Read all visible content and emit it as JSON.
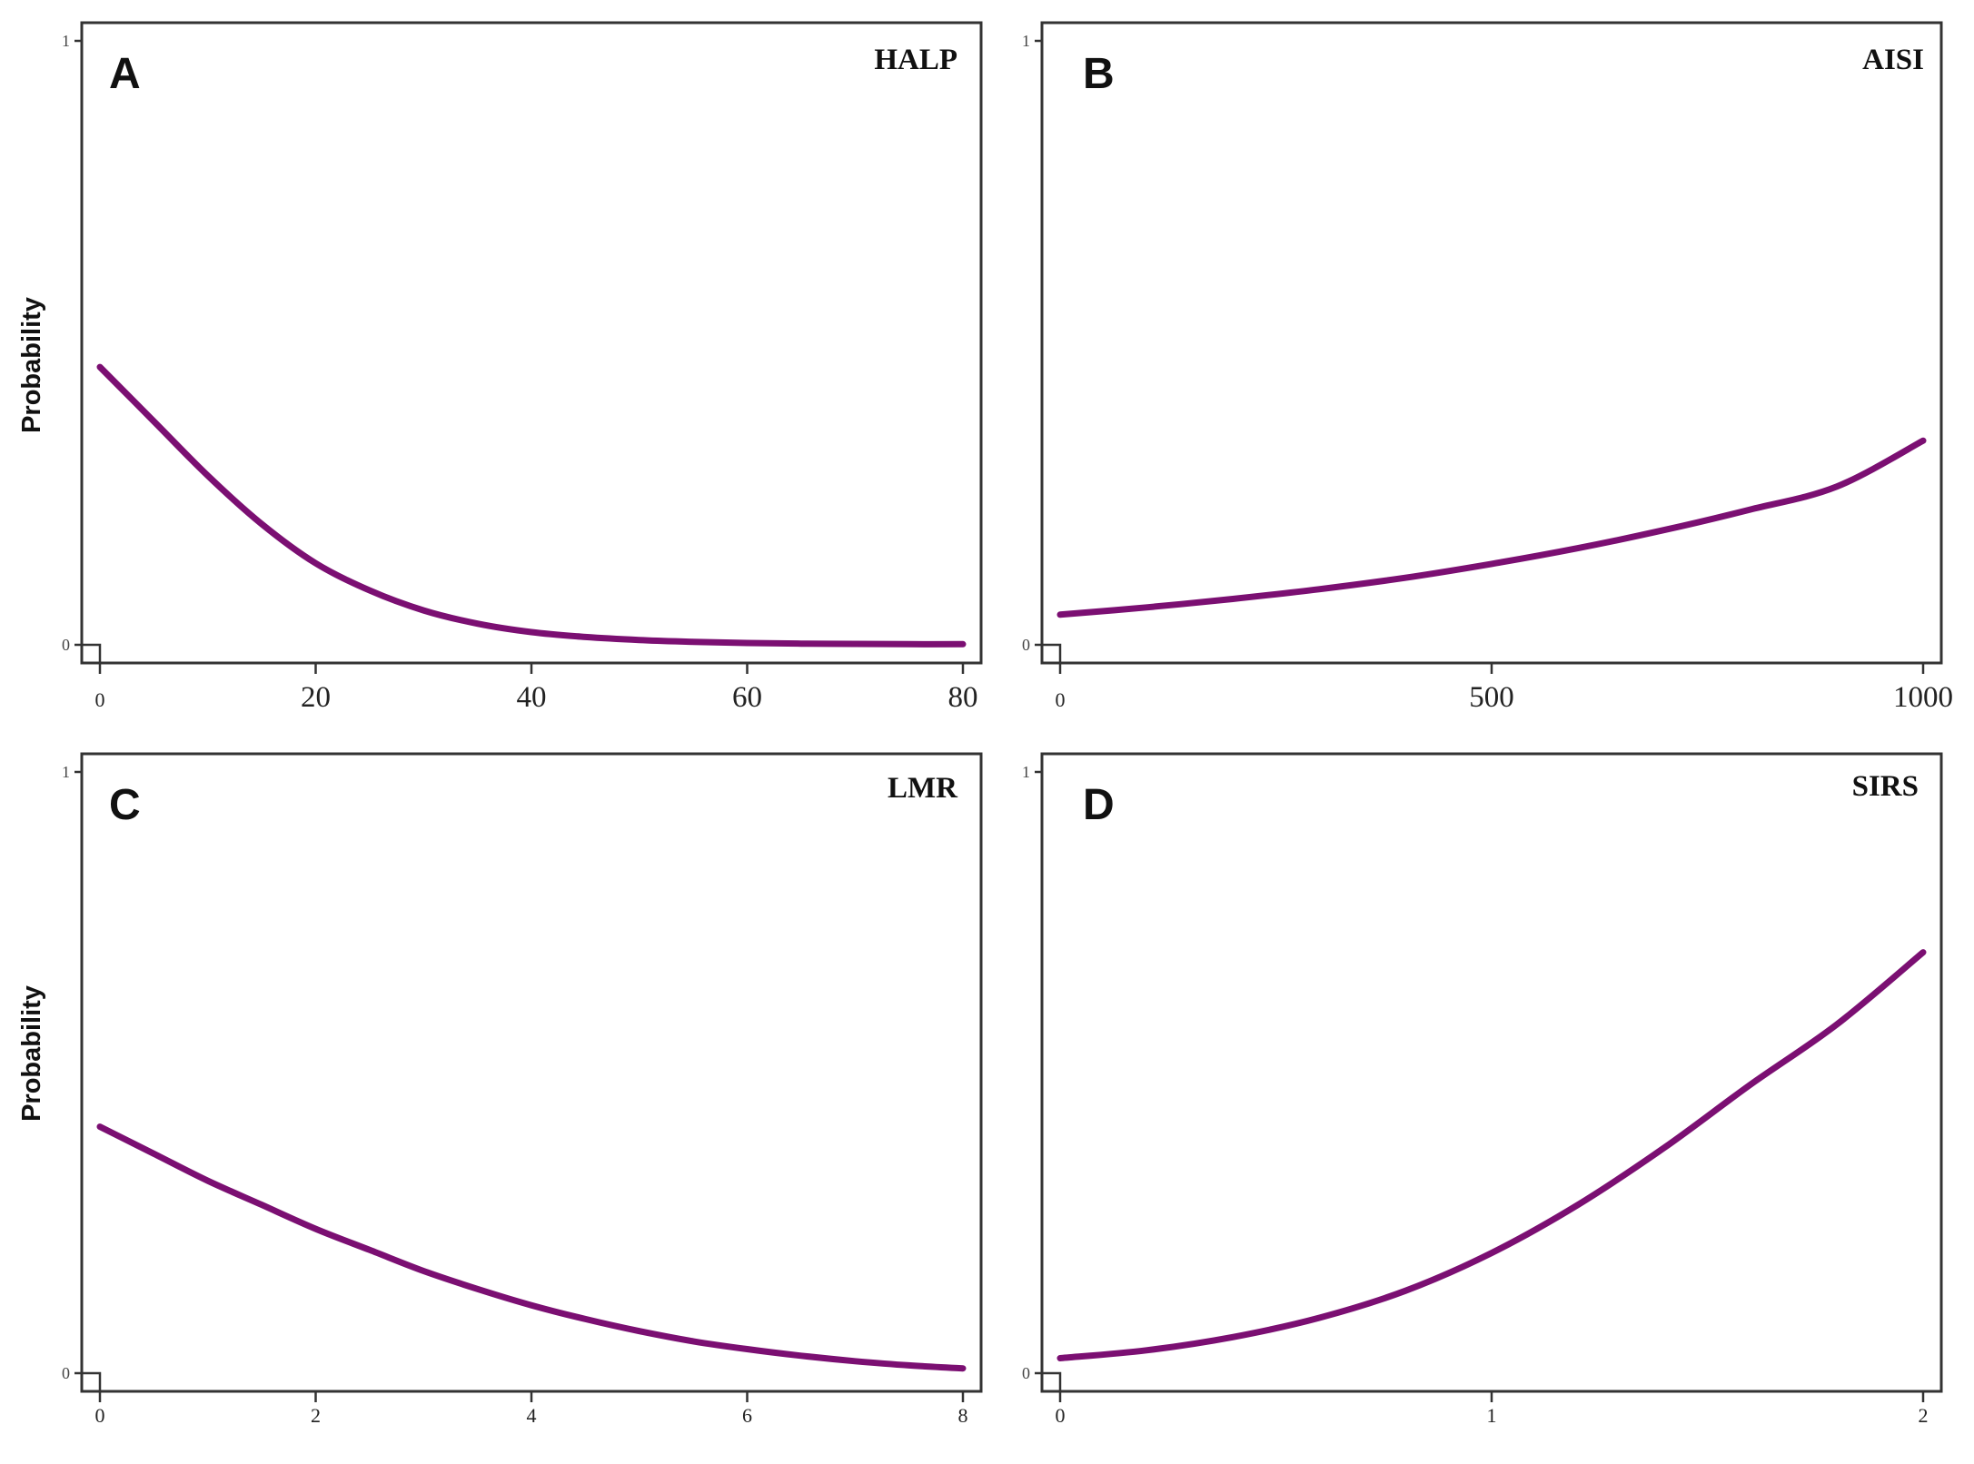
{
  "chart_data": [
    {
      "panel": "A",
      "title": "HALP",
      "type": "line",
      "ylabel": "Probability",
      "xlabel": "",
      "xlim": [
        0,
        80
      ],
      "ylim": [
        0,
        1
      ],
      "xticks": [
        "0",
        "20",
        "40",
        "60",
        "80"
      ],
      "yticks": [
        "0",
        "1"
      ],
      "line_color": "#7b0f72",
      "series": [
        {
          "x": [
            0,
            5,
            10,
            15,
            20,
            25,
            30,
            35,
            40,
            45,
            50,
            55,
            60,
            65,
            70,
            75,
            80
          ],
          "y": [
            0.46,
            0.37,
            0.28,
            0.2,
            0.135,
            0.09,
            0.057,
            0.035,
            0.021,
            0.013,
            0.008,
            0.005,
            0.003,
            0.002,
            0.0015,
            0.001,
            0.001
          ]
        }
      ]
    },
    {
      "panel": "B",
      "title": "AISI",
      "type": "line",
      "ylabel": "",
      "xlabel": "",
      "xlim": [
        0,
        1000
      ],
      "ylim": [
        0,
        1
      ],
      "xticks": [
        "0",
        "500",
        "1000"
      ],
      "yticks": [
        "0",
        "1"
      ],
      "line_color": "#7b0f72",
      "series": [
        {
          "x": [
            0,
            100,
            200,
            300,
            400,
            500,
            600,
            700,
            800,
            900,
            1000
          ],
          "y": [
            0.05,
            0.062,
            0.076,
            0.092,
            0.111,
            0.134,
            0.16,
            0.19,
            0.224,
            0.262,
            0.338
          ]
        }
      ]
    },
    {
      "panel": "C",
      "title": "LMR",
      "type": "line",
      "ylabel": "Probability",
      "xlabel": "",
      "xlim": [
        0,
        8
      ],
      "ylim": [
        0,
        1
      ],
      "xticks": [
        "0",
        "2",
        "4",
        "6",
        "8"
      ],
      "yticks": [
        "0",
        "1"
      ],
      "line_color": "#7b0f72",
      "series": [
        {
          "x": [
            0,
            0.5,
            1,
            1.5,
            2,
            2.5,
            3,
            3.5,
            4,
            4.5,
            5,
            5.5,
            6,
            6.5,
            7,
            7.5,
            8
          ],
          "y": [
            0.41,
            0.365,
            0.32,
            0.28,
            0.24,
            0.205,
            0.17,
            0.14,
            0.113,
            0.09,
            0.07,
            0.053,
            0.04,
            0.029,
            0.02,
            0.013,
            0.008
          ]
        }
      ]
    },
    {
      "panel": "D",
      "title": "SIRS",
      "type": "line",
      "ylabel": "",
      "xlabel": "",
      "xlim": [
        0,
        2
      ],
      "ylim": [
        0,
        1
      ],
      "xticks": [
        "0",
        "1",
        "2"
      ],
      "yticks": [
        "0",
        "1"
      ],
      "line_color": "#7b0f72",
      "series": [
        {
          "x": [
            0,
            0.2,
            0.4,
            0.6,
            0.8,
            1.0,
            1.2,
            1.4,
            1.6,
            1.8,
            2.0
          ],
          "y": [
            0.025,
            0.038,
            0.06,
            0.092,
            0.137,
            0.2,
            0.28,
            0.375,
            0.48,
            0.58,
            0.7
          ]
        }
      ]
    }
  ]
}
